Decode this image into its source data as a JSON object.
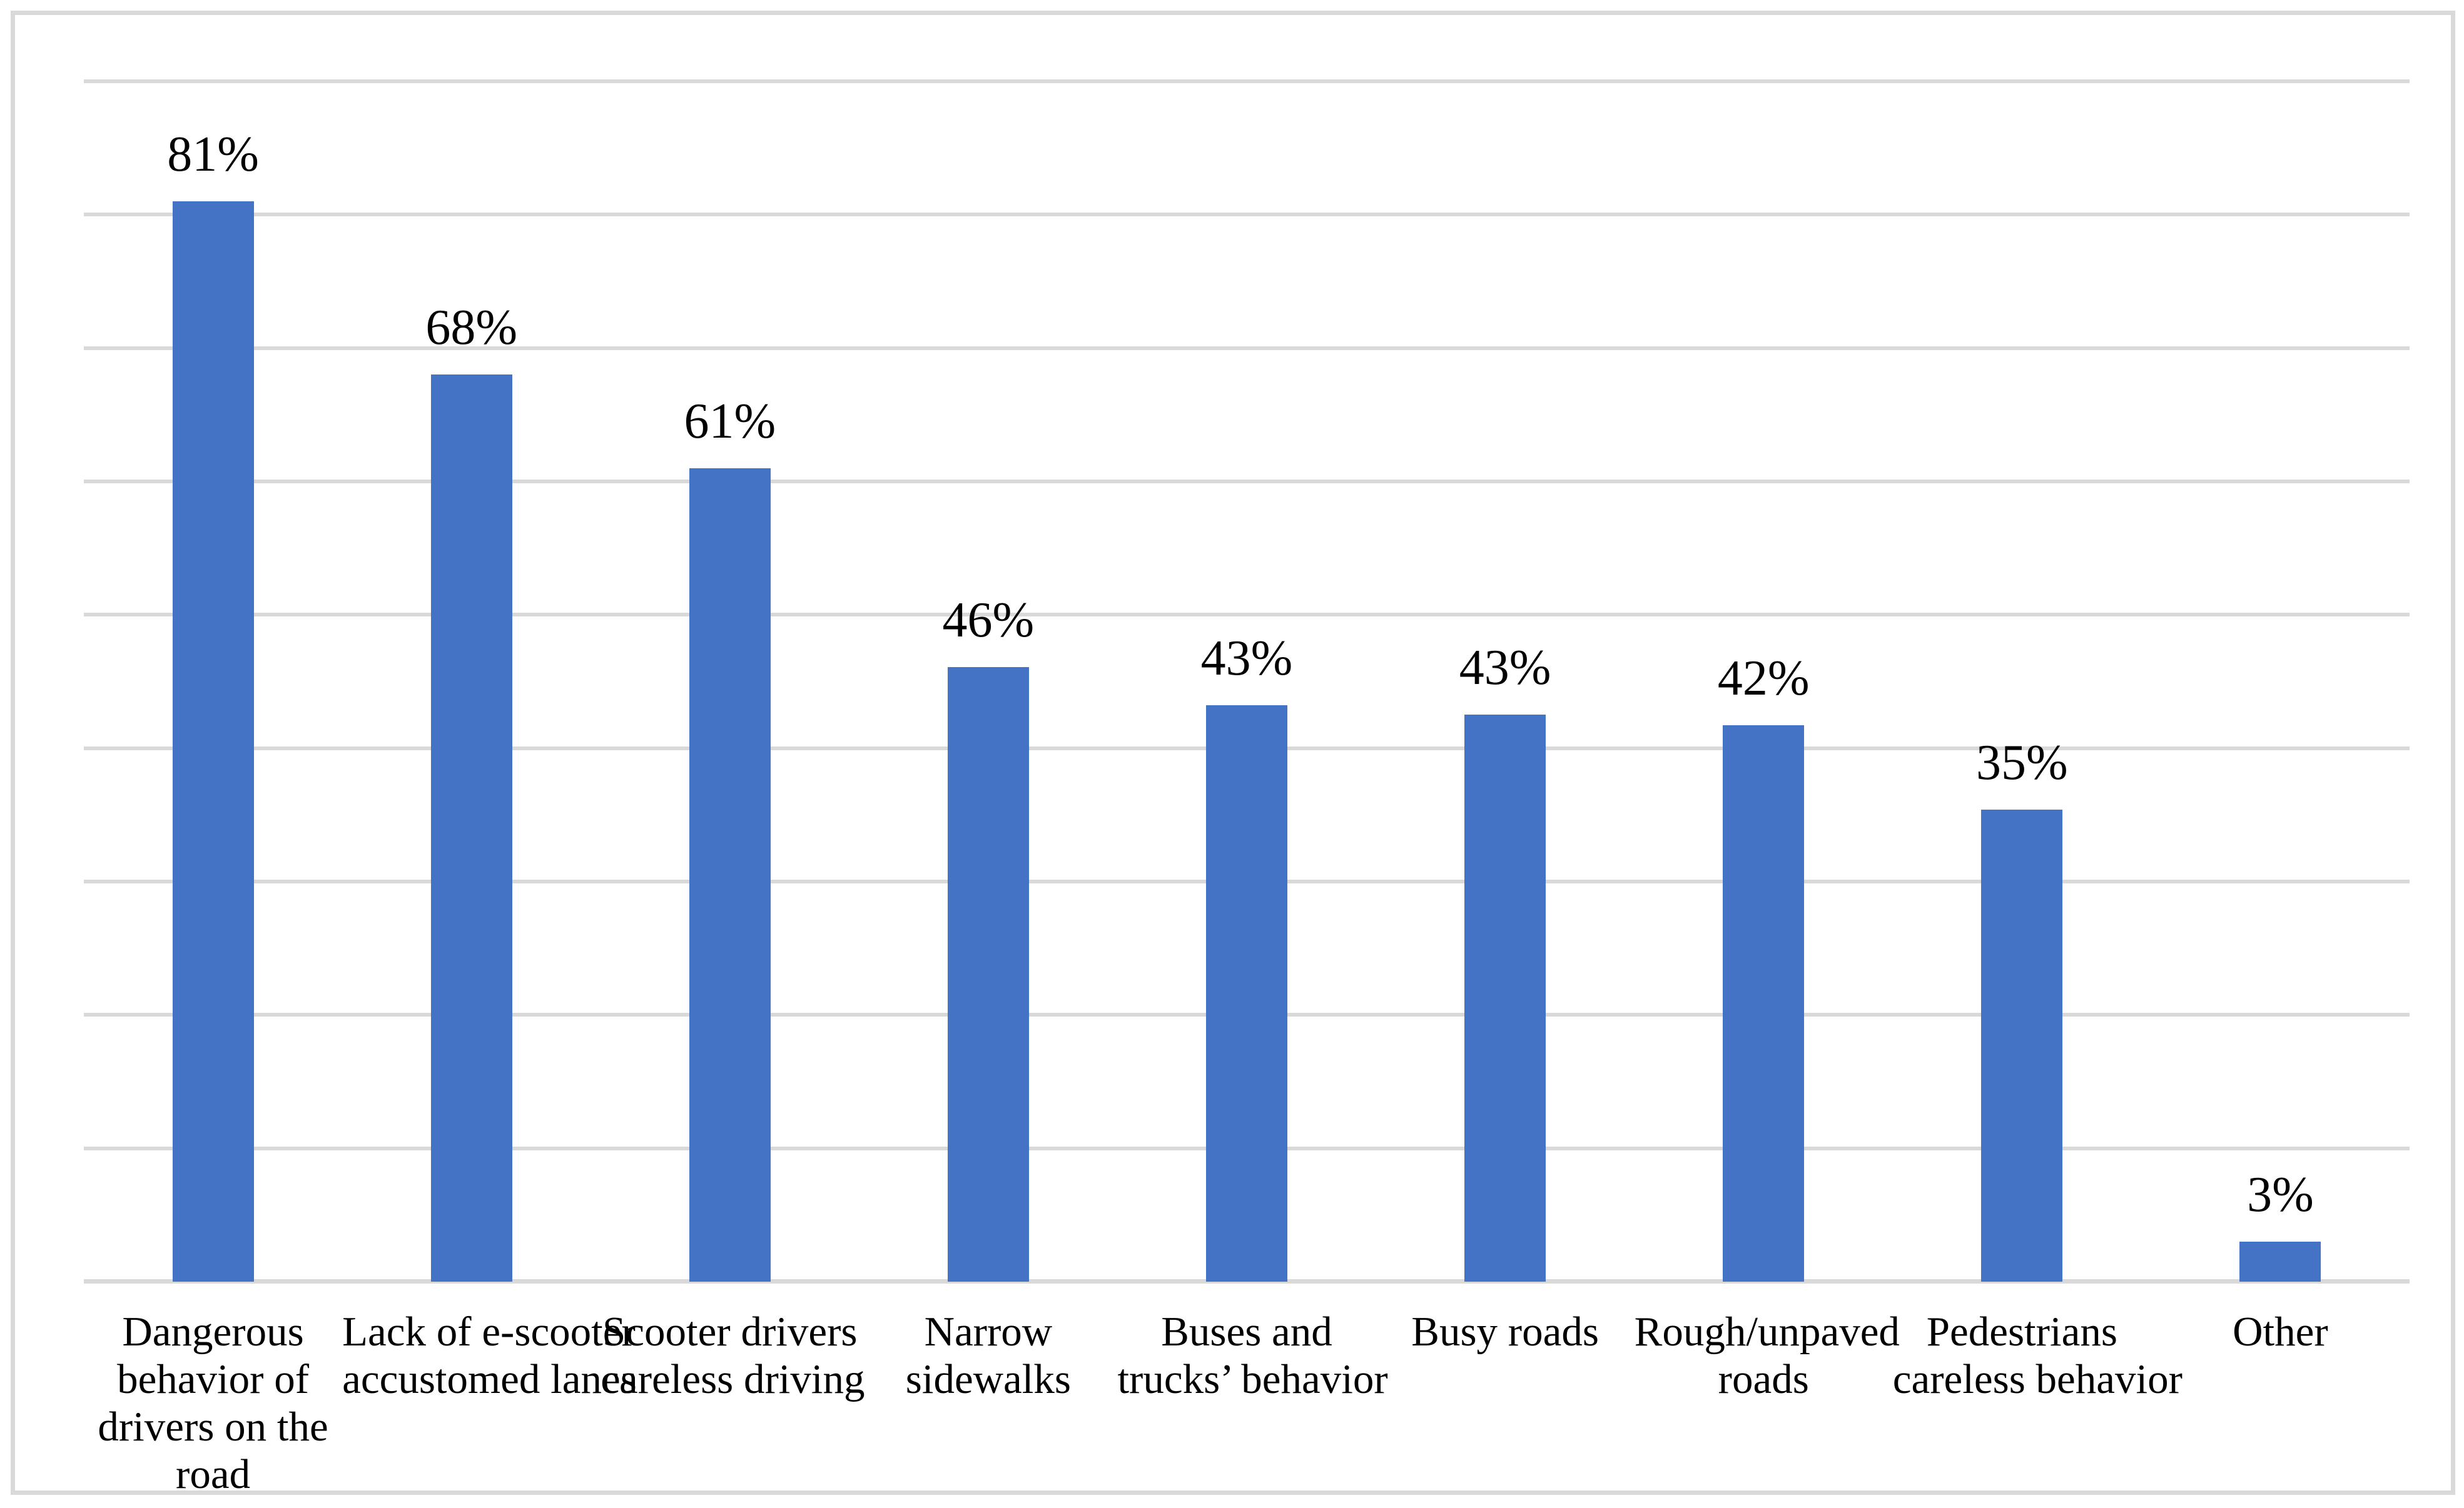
{
  "chart_data": {
    "type": "bar",
    "title": "",
    "xlabel": "",
    "ylabel": "",
    "legend": "none",
    "grid": "horizontal",
    "ylim": [
      0,
      90
    ],
    "grid_step": 10,
    "gridline_values": [
      90,
      80,
      70,
      60,
      50,
      40,
      30,
      20,
      10
    ],
    "categories": [
      "Dangerous behavior of drivers on the road",
      "Lack of e-scooter accustomed lanes",
      "Scooter drivers careless driving",
      "Narrow sidewalks",
      "Buses and trucks’ behavior",
      "Busy roads",
      "Rough/unpaved roads",
      "Pedestrians careless behavior",
      "Other"
    ],
    "category_lines": [
      [
        "Dangerous",
        "behavior of",
        "drivers on the",
        "road"
      ],
      [
        "Lack of e-scooter",
        "accustomed lanes"
      ],
      [
        "Scooter drivers",
        "careless driving"
      ],
      [
        "Narrow",
        "sidewalks"
      ],
      [
        "Buses and",
        "trucks’ behavior"
      ],
      [
        "Busy roads"
      ],
      [
        "Rough/unpaved",
        "roads"
      ],
      [
        "Pedestrians",
        "careless behavior"
      ],
      [
        "Other"
      ]
    ],
    "values": [
      81,
      68,
      61,
      46,
      43,
      43,
      42,
      35,
      3
    ],
    "data_labels": [
      "81%",
      "68%",
      "61%",
      "46%",
      "43%",
      "43%",
      "42%",
      "35%",
      "3%"
    ],
    "bar_heights_pct": [
      81,
      68,
      61,
      46.1,
      43.2,
      42.5,
      41.7,
      35.4,
      3
    ],
    "colors": {
      "bar": "#4472C4",
      "gridline": "#D9D9D9",
      "axis_line": "#D9D9D9",
      "frame_border": "#D9D9D9",
      "background": "#FFFFFF",
      "text": "#000000"
    }
  }
}
